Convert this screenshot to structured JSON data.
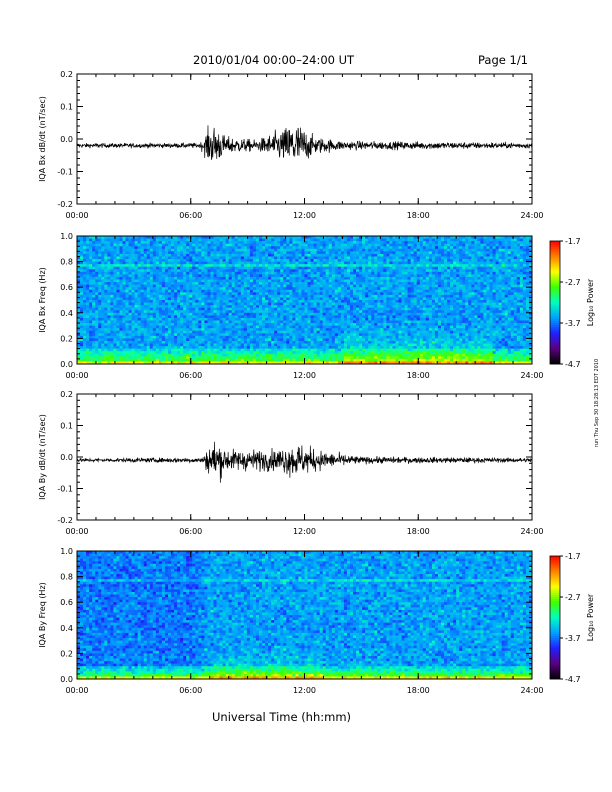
{
  "header": {
    "title": "2010/01/04  00:00–24:00 UT",
    "page": "Page 1/1"
  },
  "footer": {
    "xlabel": "Universal Time (hh:mm)",
    "side_stamp": "run Thu Sep 30 18:28:13 EDT 2010"
  },
  "colors": {
    "trace": "#000000",
    "colormap": [
      "#000000",
      "#5a0080",
      "#2020ff",
      "#00a0ff",
      "#00ffc0",
      "#40ff00",
      "#ffff00",
      "#ff8000",
      "#ff0000"
    ]
  },
  "chart_data": [
    {
      "type": "line",
      "ylabel": "IQA Bx dB/dt (nT/sec)",
      "xlim": [
        0,
        24
      ],
      "ylim": [
        -0.2,
        0.2
      ],
      "x_ticks": [
        "00:00",
        "06:00",
        "12:00",
        "18:00",
        "24:00"
      ],
      "y_ticks": [
        "-0.2",
        "-0.1",
        "0.0",
        "0.1",
        "0.2"
      ],
      "baseline": -0.02,
      "noise_envelope": [
        {
          "t": 0,
          "amp": 0.012
        },
        {
          "t": 6.5,
          "amp": 0.014
        },
        {
          "t": 6.9,
          "amp": 0.09
        },
        {
          "t": 7.3,
          "amp": 0.12
        },
        {
          "t": 7.8,
          "amp": 0.05
        },
        {
          "t": 9.5,
          "amp": 0.03
        },
        {
          "t": 11.0,
          "amp": 0.1
        },
        {
          "t": 11.5,
          "amp": 0.14
        },
        {
          "t": 12.5,
          "amp": 0.05
        },
        {
          "t": 14.0,
          "amp": 0.025
        },
        {
          "t": 24,
          "amp": 0.015
        }
      ]
    },
    {
      "type": "heatmap",
      "ylabel": "IQA Bx Freq (Hz)",
      "xlim": [
        0,
        24
      ],
      "ylim": [
        0.0,
        1.0
      ],
      "x_ticks": [
        "00:00",
        "06:00",
        "12:00",
        "18:00",
        "24:00"
      ],
      "y_ticks": [
        "0.0",
        "0.2",
        "0.4",
        "0.6",
        "0.8",
        "1.0"
      ],
      "colorbar": {
        "label": "Log₁₀ Power",
        "range": [
          -4.7,
          -1.7
        ],
        "ticks": [
          "-1.7",
          "-2.7",
          "-3.7",
          "-4.7"
        ]
      },
      "features": {
        "line_hz": 0.77,
        "low_freq_band_hz": 0.12,
        "afternoon_enhancement": [
          14,
          22
        ]
      }
    },
    {
      "type": "line",
      "ylabel": "IQA By dB/dt (nT/sec)",
      "xlim": [
        0,
        24
      ],
      "ylim": [
        -0.2,
        0.2
      ],
      "x_ticks": [
        "00:00",
        "06:00",
        "12:00",
        "18:00",
        "24:00"
      ],
      "y_ticks": [
        "-0.2",
        "-0.1",
        "0.0",
        "0.1",
        "0.2"
      ],
      "baseline": -0.01,
      "noise_envelope": [
        {
          "t": 0,
          "amp": 0.01
        },
        {
          "t": 6.6,
          "amp": 0.015
        },
        {
          "t": 7.0,
          "amp": 0.09
        },
        {
          "t": 7.3,
          "amp": 0.12
        },
        {
          "t": 8.0,
          "amp": 0.06
        },
        {
          "t": 10.5,
          "amp": 0.06
        },
        {
          "t": 11.5,
          "amp": 0.1
        },
        {
          "t": 13.0,
          "amp": 0.05
        },
        {
          "t": 15.0,
          "amp": 0.02
        },
        {
          "t": 24,
          "amp": 0.012
        }
      ]
    },
    {
      "type": "heatmap",
      "ylabel": "IQA By Freq (Hz)",
      "xlim": [
        0,
        24
      ],
      "ylim": [
        0.0,
        1.0
      ],
      "x_ticks": [
        "00:00",
        "06:00",
        "12:00",
        "18:00",
        "24:00"
      ],
      "y_ticks": [
        "0.0",
        "0.2",
        "0.4",
        "0.6",
        "0.8",
        "1.0"
      ],
      "colorbar": {
        "label": "Log₁₀ Power",
        "range": [
          -4.7,
          -1.7
        ],
        "ticks": [
          "-1.7",
          "-2.7",
          "-3.7",
          "-4.7"
        ]
      },
      "features": {
        "line_hz": 0.77,
        "low_freq_band_hz": 0.1,
        "afternoon_enhancement": [
          7,
          13
        ]
      }
    }
  ]
}
